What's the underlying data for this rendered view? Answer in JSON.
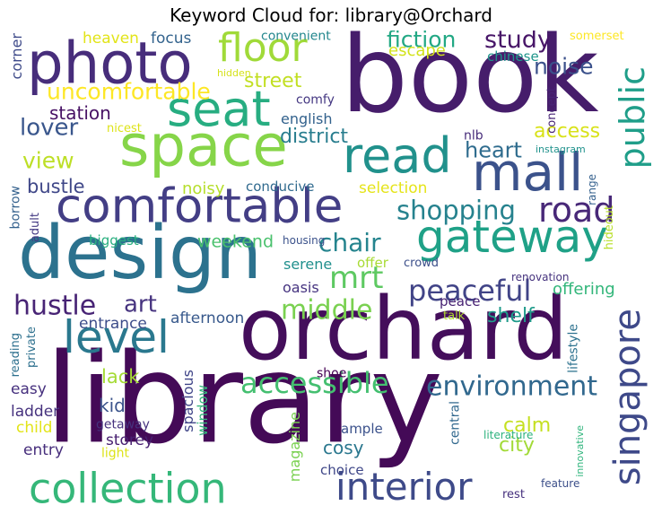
{
  "title": "Keyword Cloud for: library@Orchard",
  "chart_data": {
    "type": "wordcloud",
    "title": "Keyword Cloud for: library@Orchard",
    "words": [
      {
        "text": "library",
        "weight": 100,
        "color": "#440a57",
        "orient": "h"
      },
      {
        "text": "book",
        "weight": 80,
        "color": "#461d6b",
        "orient": "h"
      },
      {
        "text": "orchard",
        "weight": 70,
        "color": "#440e5b",
        "orient": "h"
      },
      {
        "text": "design",
        "weight": 62,
        "color": "#2c728e",
        "orient": "h"
      },
      {
        "text": "space",
        "weight": 55,
        "color": "#86d549",
        "orient": "h"
      },
      {
        "text": "photo",
        "weight": 53,
        "color": "#472d7b",
        "orient": "h"
      },
      {
        "text": "seat",
        "weight": 50,
        "color": "#27ad81",
        "orient": "h"
      },
      {
        "text": "comfortable",
        "weight": 48,
        "color": "#433e85",
        "orient": "h"
      },
      {
        "text": "gateway",
        "weight": 46,
        "color": "#1fa187",
        "orient": "h"
      },
      {
        "text": "mall",
        "weight": 45,
        "color": "#3b528b",
        "orient": "h"
      },
      {
        "text": "read",
        "weight": 42,
        "color": "#21918c",
        "orient": "h"
      },
      {
        "text": "collection",
        "weight": 40,
        "color": "#35b779",
        "orient": "h"
      },
      {
        "text": "level",
        "weight": 38,
        "color": "#2a788e",
        "orient": "h"
      },
      {
        "text": "floor",
        "weight": 35,
        "color": "#a0da39",
        "orient": "h"
      },
      {
        "text": "singapore",
        "weight": 34,
        "color": "#3e4989",
        "orient": "v"
      },
      {
        "text": "interior",
        "weight": 34,
        "color": "#3e4a89",
        "orient": "h"
      },
      {
        "text": "road",
        "weight": 30,
        "color": "#482878",
        "orient": "h"
      },
      {
        "text": "public",
        "weight": 30,
        "color": "#1f9e89",
        "orient": "v"
      },
      {
        "text": "accessible",
        "weight": 28,
        "color": "#44bf70",
        "orient": "h"
      },
      {
        "text": "mrt",
        "weight": 27,
        "color": "#5ec962",
        "orient": "h"
      },
      {
        "text": "peaceful",
        "weight": 26,
        "color": "#414487",
        "orient": "h"
      },
      {
        "text": "environment",
        "weight": 25,
        "color": "#31688e",
        "orient": "h"
      },
      {
        "text": "shopping",
        "weight": 24,
        "color": "#26828e",
        "orient": "h"
      },
      {
        "text": "middle",
        "weight": 23,
        "color": "#7ad151",
        "orient": "h"
      },
      {
        "text": "hustle",
        "weight": 22,
        "color": "#482475",
        "orient": "h"
      },
      {
        "text": "chair",
        "weight": 22,
        "color": "#25848e",
        "orient": "h"
      },
      {
        "text": "study",
        "weight": 21,
        "color": "#481668",
        "orient": "h"
      },
      {
        "text": "uncomfortable",
        "weight": 20,
        "color": "#fde725",
        "orient": "h"
      },
      {
        "text": "lover",
        "weight": 20,
        "color": "#39568c",
        "orient": "h"
      },
      {
        "text": "fiction",
        "weight": 20,
        "color": "#22a884",
        "orient": "h"
      },
      {
        "text": "noise",
        "weight": 19,
        "color": "#3b518b",
        "orient": "h"
      },
      {
        "text": "street",
        "weight": 18,
        "color": "#c2df23",
        "orient": "h"
      },
      {
        "text": "district",
        "weight": 18,
        "color": "#287d8e",
        "orient": "h"
      },
      {
        "text": "view",
        "weight": 18,
        "color": "#bddf26",
        "orient": "h"
      },
      {
        "text": "art",
        "weight": 18,
        "color": "#46337f",
        "orient": "h"
      },
      {
        "text": "heart",
        "weight": 18,
        "color": "#2f6c8e",
        "orient": "h"
      },
      {
        "text": "station",
        "weight": 17,
        "color": "#471164",
        "orient": "h"
      },
      {
        "text": "access",
        "weight": 17,
        "color": "#d8e219",
        "orient": "h"
      },
      {
        "text": "shelf",
        "weight": 17,
        "color": "#1e9b8a",
        "orient": "h"
      },
      {
        "text": "bustle",
        "weight": 16,
        "color": "#3f4788",
        "orient": "h"
      },
      {
        "text": "weekend",
        "weight": 15,
        "color": "#4ac16d",
        "orient": "h"
      },
      {
        "text": "calm",
        "weight": 15,
        "color": "#c5e021",
        "orient": "h"
      },
      {
        "text": "city",
        "weight": 15,
        "color": "#a2da37",
        "orient": "h"
      },
      {
        "text": "lack",
        "weight": 15,
        "color": "#a5db36",
        "orient": "h"
      },
      {
        "text": "kid",
        "weight": 15,
        "color": "#3a538b",
        "orient": "h"
      },
      {
        "text": "cosy",
        "weight": 15,
        "color": "#2a778e",
        "orient": "h"
      },
      {
        "text": "offering",
        "weight": 14,
        "color": "#32b67a",
        "orient": "h"
      },
      {
        "text": "escape",
        "weight": 14,
        "color": "#d2e21b",
        "orient": "h"
      },
      {
        "text": "heaven",
        "weight": 13,
        "color": "#e2e418",
        "orient": "h"
      },
      {
        "text": "focus",
        "weight": 13,
        "color": "#33638d",
        "orient": "h"
      },
      {
        "text": "selection",
        "weight": 13,
        "color": "#e5e419",
        "orient": "h"
      },
      {
        "text": "noisy",
        "weight": 13,
        "color": "#b5de2b",
        "orient": "h"
      },
      {
        "text": "conducive",
        "weight": 12,
        "color": "#306a8e",
        "orient": "h"
      },
      {
        "text": "afternoon",
        "weight": 13,
        "color": "#38598c",
        "orient": "h"
      },
      {
        "text": "entrance",
        "weight": 13,
        "color": "#3d4d8a",
        "orient": "h"
      },
      {
        "text": "english",
        "weight": 13,
        "color": "#33628d",
        "orient": "h"
      },
      {
        "text": "easy",
        "weight": 13,
        "color": "#46307e",
        "orient": "h"
      },
      {
        "text": "child",
        "weight": 13,
        "color": "#e2e418",
        "orient": "h"
      },
      {
        "text": "ladder",
        "weight": 13,
        "color": "#46327e",
        "orient": "h"
      },
      {
        "text": "entry",
        "weight": 13,
        "color": "#472e7c",
        "orient": "h"
      },
      {
        "text": "storey",
        "weight": 13,
        "color": "#482071",
        "orient": "h"
      },
      {
        "text": "serene",
        "weight": 12,
        "color": "#21908d",
        "orient": "h"
      },
      {
        "text": "oasis",
        "weight": 12,
        "color": "#463480",
        "orient": "h"
      },
      {
        "text": "offer",
        "weight": 12,
        "color": "#a8db34",
        "orient": "h"
      },
      {
        "text": "chinese",
        "weight": 12,
        "color": "#1f958b",
        "orient": "h"
      },
      {
        "text": "convenient",
        "weight": 12,
        "color": "#24878e",
        "orient": "h"
      },
      {
        "text": "biggest",
        "weight": 12,
        "color": "#29af7f",
        "orient": "h"
      },
      {
        "text": "comfy",
        "weight": 11,
        "color": "#453882",
        "orient": "h"
      },
      {
        "text": "peace",
        "weight": 11,
        "color": "#482374",
        "orient": "h"
      },
      {
        "text": "magazine",
        "weight": 12,
        "color": "#7ad151",
        "orient": "v"
      },
      {
        "text": "getaway",
        "weight": 11,
        "color": "#46327e",
        "orient": "h"
      },
      {
        "text": "ample",
        "weight": 11,
        "color": "#3b518b",
        "orient": "h"
      },
      {
        "text": "choice",
        "weight": 11,
        "color": "#3f4788",
        "orient": "h"
      },
      {
        "text": "shoe",
        "weight": 10,
        "color": "#440154",
        "orient": "h"
      },
      {
        "text": "crowd",
        "weight": 10,
        "color": "#3c4f8a",
        "orient": "h"
      },
      {
        "text": "talk",
        "weight": 10,
        "color": "#b0dd2f",
        "orient": "h"
      },
      {
        "text": "nlb",
        "weight": 10,
        "color": "#472c7a",
        "orient": "h"
      },
      {
        "text": "light",
        "weight": 10,
        "color": "#dde318",
        "orient": "h"
      },
      {
        "text": "spacious",
        "weight": 12,
        "color": "#404588",
        "orient": "v"
      },
      {
        "text": "window",
        "weight": 11,
        "color": "#32b67a",
        "orient": "v"
      },
      {
        "text": "central",
        "weight": 11,
        "color": "#31688e",
        "orient": "v"
      },
      {
        "text": "lifestyle",
        "weight": 11,
        "color": "#2c718e",
        "orient": "v"
      },
      {
        "text": "hideout",
        "weight": 10,
        "color": "#b8de29",
        "orient": "v"
      },
      {
        "text": "range",
        "weight": 10,
        "color": "#34608d",
        "orient": "v"
      },
      {
        "text": "concept",
        "weight": 10,
        "color": "#482576",
        "orient": "v"
      },
      {
        "text": "corner",
        "weight": 12,
        "color": "#3e4a89",
        "orient": "v"
      },
      {
        "text": "borrow",
        "weight": 10,
        "color": "#34618d",
        "orient": "v"
      },
      {
        "text": "adult",
        "weight": 10,
        "color": "#443a83",
        "orient": "v"
      },
      {
        "text": "reading",
        "weight": 10,
        "color": "#2d708e",
        "orient": "v"
      },
      {
        "text": "private",
        "weight": 10,
        "color": "#2d708e",
        "orient": "v"
      },
      {
        "text": "innovative",
        "weight": 9,
        "color": "#2fb47c",
        "orient": "v"
      },
      {
        "text": "nicest",
        "weight": 9,
        "color": "#dde318",
        "orient": "h"
      },
      {
        "text": "hidden",
        "weight": 8,
        "color": "#d5e21a",
        "orient": "h"
      },
      {
        "text": "somerset",
        "weight": 9,
        "color": "#fde725",
        "orient": "h"
      },
      {
        "text": "instagram",
        "weight": 8,
        "color": "#20928c",
        "orient": "h"
      },
      {
        "text": "housing",
        "weight": 8,
        "color": "#3b528b",
        "orient": "h"
      },
      {
        "text": "renovation",
        "weight": 8,
        "color": "#46337e",
        "orient": "h"
      },
      {
        "text": "literature",
        "weight": 9,
        "color": "#2db27d",
        "orient": "h"
      },
      {
        "text": "feature",
        "weight": 9,
        "color": "#3c4f8a",
        "orient": "h"
      },
      {
        "text": "rest",
        "weight": 10,
        "color": "#46307e",
        "orient": "h"
      }
    ]
  }
}
